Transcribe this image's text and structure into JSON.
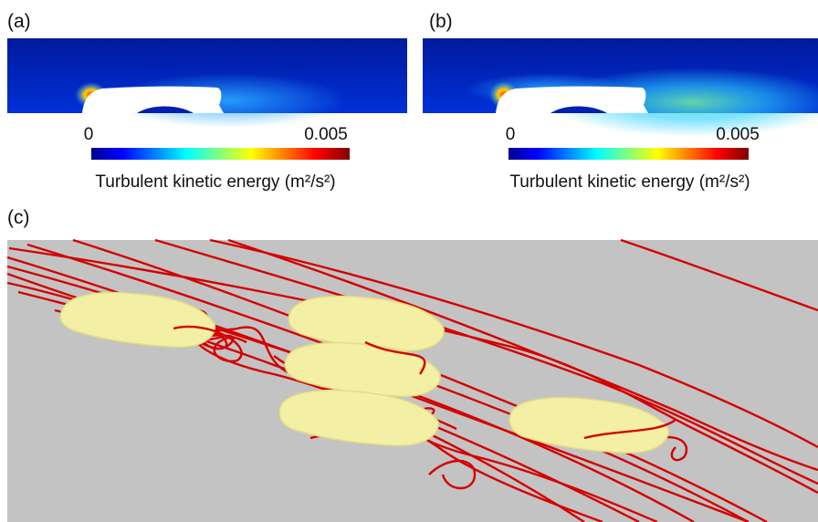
{
  "panels": [
    {
      "label": "(a)",
      "colorbar": {
        "ticks": [
          0,
          0.005
        ],
        "title": "Turbulent kinetic energy (m²/s²)"
      }
    },
    {
      "label": "(b)",
      "colorbar": {
        "ticks": [
          0,
          0.005
        ],
        "title": "Turbulent kinetic energy (m²/s²)"
      }
    },
    {
      "label": "(c)"
    }
  ]
}
